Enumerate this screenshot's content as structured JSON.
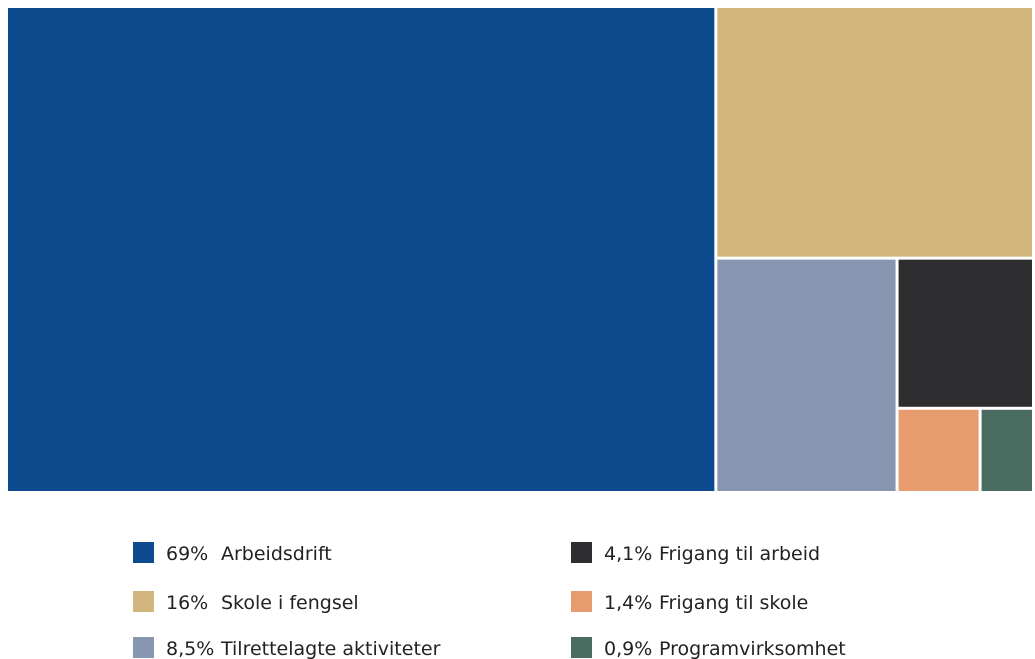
{
  "chart_data": {
    "type": "treemap",
    "title": "",
    "series": [
      {
        "pct_label": "69%",
        "name": "Arbeidsdrift",
        "value": 69,
        "color": "#0E4A8E"
      },
      {
        "pct_label": "16%",
        "name": "Skole i fengsel",
        "value": 16,
        "color": "#D1B67D"
      },
      {
        "pct_label": "8,5%",
        "name": "Tilrettelagte aktiviteter",
        "value": 8.5,
        "color": "#8797B1"
      },
      {
        "pct_label": "4,1%",
        "name": "Frigang til arbeid",
        "value": 4.1,
        "color": "#2E2E30"
      },
      {
        "pct_label": "1,4%",
        "name": "Frigang til skole",
        "value": 1.4,
        "color": "#E89B6E"
      },
      {
        "pct_label": "0,9%",
        "name": "Programvirksomhet",
        "value": 0.9,
        "color": "#4A6B60"
      }
    ],
    "legend_position": "bottom"
  }
}
